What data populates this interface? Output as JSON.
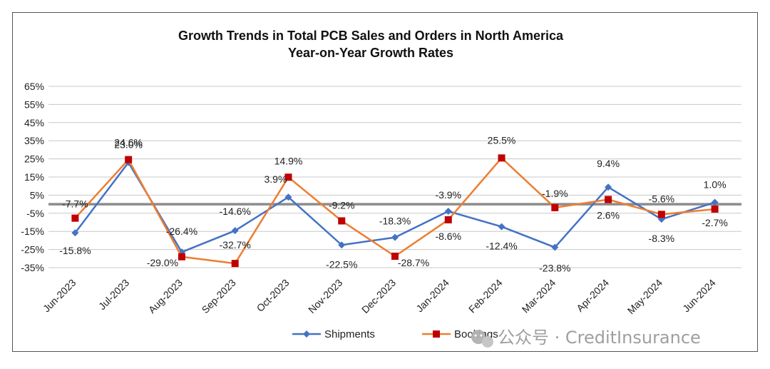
{
  "chart_data": {
    "type": "line",
    "title": "Growth Trends in Total PCB Sales and Orders in North America",
    "subtitle": "Year-on-Year Growth Rates",
    "categories": [
      "Jun-2023",
      "Jul-2023",
      "Aug-2023",
      "Sep-2023",
      "Oct-2023",
      "Nov-2023",
      "Dec-2023",
      "Jan-2024",
      "Feb-2024",
      "Mar-2024",
      "Apr-2024",
      "May-2024",
      "Jun-2024"
    ],
    "y_ticks": [
      "65%",
      "55%",
      "45%",
      "35%",
      "25%",
      "15%",
      "5%",
      "-5%",
      "-15%",
      "-25%",
      "-35%"
    ],
    "ylim": [
      -35,
      65
    ],
    "zero_line": true,
    "grid": true,
    "legend_position": "bottom",
    "series": [
      {
        "name": "Shipments",
        "color": "#4472C4",
        "marker": "diamond",
        "values": [
          -15.8,
          23.0,
          -26.4,
          -14.6,
          3.9,
          -22.5,
          -18.3,
          -3.9,
          -12.4,
          -23.8,
          9.4,
          -8.3,
          1.0
        ],
        "labels": [
          "-15.8%",
          "23.0%",
          "-26.4%",
          "-14.6%",
          "3.9%",
          "-22.5%",
          "-18.3%",
          "-3.9%",
          "-12.4%",
          "-23.8%",
          "9.4%",
          "-8.3%",
          "1.0%"
        ]
      },
      {
        "name": "Bookings",
        "color": "#ED7D31",
        "marker_color": "#C00000",
        "marker": "square",
        "values": [
          -7.7,
          24.6,
          -29.0,
          -32.7,
          14.9,
          -9.2,
          -28.7,
          -8.6,
          25.5,
          -1.9,
          2.6,
          -5.6,
          -2.7
        ],
        "labels": [
          "-7.7%",
          "24.6%",
          "-29.0%",
          "-32.7%",
          "14.9%",
          "-9.2%",
          "-28.7%",
          "-8.6%",
          "25.5%",
          "-1.9%",
          "2.6%",
          "-5.6%",
          "-2.7%"
        ]
      }
    ]
  },
  "watermark": {
    "icon": "wechat-icon",
    "text": "公众号 · CreditInsurance"
  }
}
